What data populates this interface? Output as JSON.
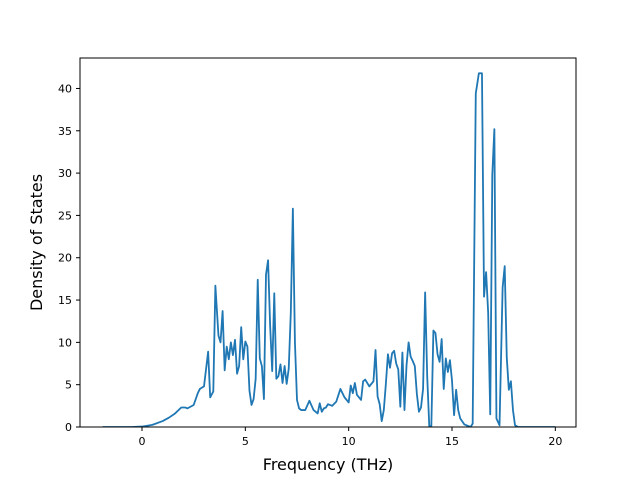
{
  "chart_data": {
    "type": "line",
    "title": "",
    "xlabel": "Frequency (THz)",
    "ylabel": "Density of States",
    "xlim": [
      -3.0,
      21.0
    ],
    "ylim": [
      0,
      43.6
    ],
    "xticks": [
      0,
      5,
      10,
      15,
      20
    ],
    "yticks": [
      0,
      5,
      10,
      15,
      20,
      25,
      30,
      35,
      40
    ],
    "grid": false,
    "line_color": "#1f77b4",
    "series": [
      {
        "x": [
          -1.9,
          -1.5,
          -1.0,
          -0.5,
          0.0,
          0.5,
          1.0,
          1.3,
          1.6,
          1.9,
          2.1,
          2.2,
          2.5,
          2.7,
          2.8,
          3.0,
          3.2,
          3.3,
          3.45,
          3.55,
          3.7,
          3.8,
          3.9,
          4.0,
          4.1,
          4.2,
          4.3,
          4.4,
          4.5,
          4.6,
          4.7,
          4.8,
          4.9,
          5.0,
          5.1,
          5.2,
          5.3,
          5.4,
          5.5,
          5.6,
          5.7,
          5.8,
          5.9,
          6.0,
          6.1,
          6.2,
          6.3,
          6.4,
          6.5,
          6.6,
          6.7,
          6.8,
          6.9,
          7.0,
          7.1,
          7.2,
          7.3,
          7.4,
          7.5,
          7.6,
          7.7,
          7.9,
          8.1,
          8.3,
          8.5,
          8.6,
          8.7,
          8.8,
          8.9,
          9.0,
          9.2,
          9.4,
          9.6,
          9.8,
          10.0,
          10.1,
          10.2,
          10.3,
          10.4,
          10.6,
          10.7,
          10.8,
          11.0,
          11.2,
          11.3,
          11.4,
          11.5,
          11.6,
          11.7,
          11.8,
          11.9,
          12.0,
          12.1,
          12.2,
          12.3,
          12.4,
          12.5,
          12.6,
          12.7,
          12.8,
          12.9,
          13.0,
          13.1,
          13.2,
          13.3,
          13.4,
          13.5,
          13.6,
          13.7,
          13.8,
          13.9,
          14.0,
          14.1,
          14.2,
          14.3,
          14.4,
          14.5,
          14.6,
          14.7,
          14.8,
          14.9,
          15.0,
          15.1,
          15.2,
          15.3,
          15.4,
          15.6,
          15.9,
          16.0,
          16.15,
          16.3,
          16.45,
          16.55,
          16.65,
          16.75,
          16.85,
          16.95,
          17.05,
          17.15,
          17.3,
          17.45,
          17.55,
          17.65,
          17.75,
          17.85,
          17.95,
          18.05,
          18.2,
          19.0,
          20.0
        ],
        "values": [
          0,
          0,
          0,
          0,
          0.05,
          0.25,
          0.7,
          1.1,
          1.6,
          2.3,
          2.3,
          2.2,
          2.6,
          4.0,
          4.5,
          4.8,
          8.9,
          3.5,
          4.2,
          16.7,
          10.8,
          10.0,
          13.7,
          6.7,
          9.5,
          8.0,
          10.0,
          8.5,
          10.3,
          6.3,
          7.2,
          11.8,
          8.0,
          10.1,
          9.5,
          4.3,
          2.6,
          3.3,
          5.7,
          17.4,
          8.1,
          7.2,
          3.3,
          18.0,
          19.7,
          12.0,
          6.6,
          15.8,
          5.7,
          6.0,
          7.4,
          5.2,
          7.2,
          5.1,
          6.9,
          13.5,
          25.8,
          10.0,
          3.2,
          2.2,
          2.0,
          2.0,
          3.1,
          2.0,
          1.6,
          2.8,
          1.8,
          2.2,
          2.3,
          2.7,
          2.5,
          3.0,
          4.5,
          3.5,
          2.9,
          4.9,
          4.0,
          5.2,
          3.8,
          3.2,
          5.4,
          5.6,
          4.8,
          5.4,
          9.1,
          3.6,
          2.7,
          0.7,
          2.0,
          5.1,
          8.6,
          7.0,
          8.7,
          9.0,
          7.5,
          6.8,
          2.4,
          8.8,
          2.0,
          7.3,
          10.0,
          8.3,
          7.8,
          7.2,
          3.9,
          1.8,
          2.3,
          4.5,
          15.9,
          6.0,
          0.1,
          0.1,
          11.4,
          11.1,
          8.6,
          7.7,
          10.4,
          4.5,
          8.1,
          6.5,
          7.9,
          5.5,
          1.4,
          4.4,
          2.0,
          1.0,
          0.3,
          0.0,
          0.4,
          39.4,
          41.8,
          41.8,
          15.4,
          18.3,
          13.5,
          1.5,
          29.8,
          35.2,
          1.0,
          0.2,
          16.5,
          19.0,
          8.2,
          4.4,
          5.4,
          2.0,
          0.2,
          0.0,
          0.0,
          0.0
        ]
      }
    ]
  }
}
